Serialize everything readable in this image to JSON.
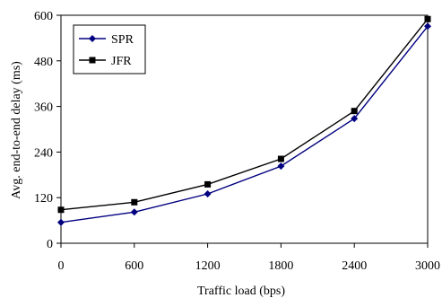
{
  "chart_data": {
    "type": "line",
    "xlabel": "Traffic load (bps)",
    "ylabel": "Avg. end-to-end delay (ms)",
    "x": [
      0,
      600,
      1200,
      1800,
      2400,
      3000
    ],
    "xlim": [
      0,
      3000
    ],
    "ylim": [
      0,
      600
    ],
    "x_ticks": [
      0,
      600,
      1200,
      1800,
      2400,
      3000
    ],
    "y_ticks": [
      0,
      120,
      240,
      360,
      480,
      600
    ],
    "x_tick_labels": [
      "0",
      "600",
      "1200",
      "1800",
      "2400",
      "3000"
    ],
    "y_tick_labels": [
      "0",
      "120",
      "240",
      "360",
      "480",
      "600"
    ],
    "grid": false,
    "legend_position": "top-left",
    "series": [
      {
        "name": "SPR",
        "marker": "diamond",
        "color": "#000080",
        "values": [
          55,
          82,
          130,
          203,
          328,
          571
        ]
      },
      {
        "name": "JFR",
        "marker": "square",
        "color": "#000000",
        "values": [
          88,
          108,
          155,
          222,
          348,
          590
        ]
      }
    ]
  }
}
